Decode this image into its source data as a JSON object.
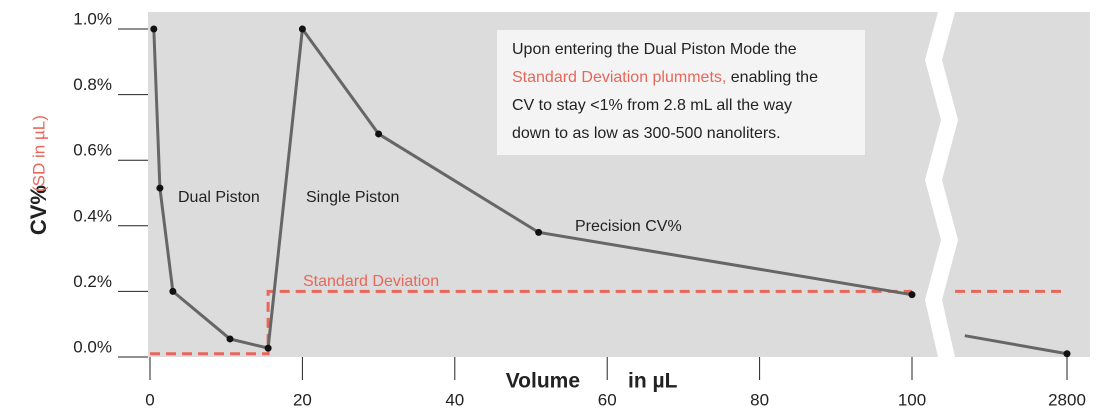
{
  "chart_data": {
    "type": "line",
    "y_label": "CV%",
    "y_label_unit": "(SD in µL)",
    "x_label": "Volume",
    "x_label_unit": "in µL",
    "x": [
      0.5,
      1.3,
      3,
      10.5,
      15.5,
      20,
      30,
      51,
      100,
      null,
      1020,
      2800
    ],
    "series": [
      {
        "name": "Precision CV%",
        "color": "#666666",
        "values": [
          1.0,
          0.515,
          0.2,
          0.055,
          0.027,
          1.0,
          0.68,
          0.38,
          0.19,
          null,
          0.065,
          0.01
        ]
      },
      {
        "name": "Standard Deviation",
        "color": "#e8675a",
        "x": [
          0,
          15.5,
          15.5,
          100,
          null,
          850,
          2800
        ],
        "values": [
          0.01,
          0.01,
          0.2,
          0.2,
          null,
          0.2,
          0.2
        ]
      }
    ],
    "xticks": [
      0,
      20,
      40,
      60,
      80,
      100,
      2800
    ],
    "ylim": [
      0,
      1.0
    ],
    "yticks": [
      {
        "value": 0,
        "label": "0.0%"
      },
      {
        "value": 0.2,
        "label": "0.2%"
      },
      {
        "value": 0.4,
        "label": "0.4%"
      },
      {
        "value": 0.6,
        "label": "0.6%"
      },
      {
        "value": 0.8,
        "label": "0.8%"
      },
      {
        "value": 1.0,
        "label": "1.0%"
      }
    ],
    "annotations": [
      "Dual Piston",
      "Single Piston"
    ],
    "note": [
      [
        {
          "text": "Upon entering the Dual Piston Mode the"
        }
      ],
      [
        {
          "text": "Standard Deviation plummets,",
          "color": "#e8675a"
        },
        {
          "text": " enabling the"
        }
      ],
      [
        {
          "text": "CV to stay <1% from 2.8 mL all the way"
        }
      ],
      [
        {
          "text": "down to as low as 300-500 nanoliters."
        }
      ]
    ]
  }
}
